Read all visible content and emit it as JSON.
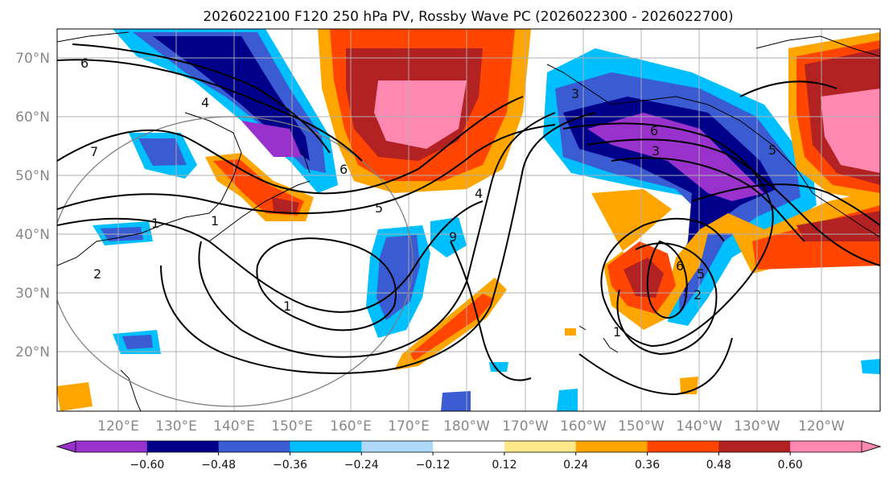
{
  "title": "2026022100 F120 250 hPa PV, Rossby Wave PC (2026022300 - 2026022700)",
  "lon_labels": [
    "120°E",
    "130°E",
    "140°E",
    "150°E",
    "160°E",
    "170°E",
    "180°W",
    "170°W",
    "160°W",
    "150°W",
    "140°W",
    "130°W",
    "120°W"
  ],
  "lat_labels": [
    "70°N",
    "60°N",
    "50°N",
    "40°N",
    "30°N",
    "20°N"
  ],
  "colorbar": {
    "ticks": [
      "−0.60",
      "−0.48",
      "−0.36",
      "−0.24",
      "−0.12",
      "0.12",
      "0.24",
      "0.36",
      "0.48",
      "0.60"
    ],
    "colors": [
      "#9932cc",
      "#00008b",
      "#3b5bd2",
      "#00bfff",
      "#add8f7",
      "#ffffff",
      "#ffe88a",
      "#ffa500",
      "#ff4500",
      "#b22222",
      "#ff88b0"
    ]
  },
  "contour_labels": [
    "6",
    "4",
    "7",
    "6",
    "5",
    "4",
    "3",
    "1",
    "2",
    "1",
    "9",
    "1",
    "6",
    "3",
    "5",
    "6",
    "5",
    "2",
    "1"
  ],
  "map_colors": {
    "pc_negative_strong": "#00008b",
    "pc_negative": "#3b5bd2",
    "pc_negative_weak": "#00bfff",
    "pc_positive_weak": "#ffa500",
    "pc_positive": "#ff4500",
    "pc_positive_strong": "#b22222",
    "pc_positive_max": "#ff88b0",
    "contour": "#000000",
    "coast": "#000000",
    "grid": "#b0b0b0"
  }
}
